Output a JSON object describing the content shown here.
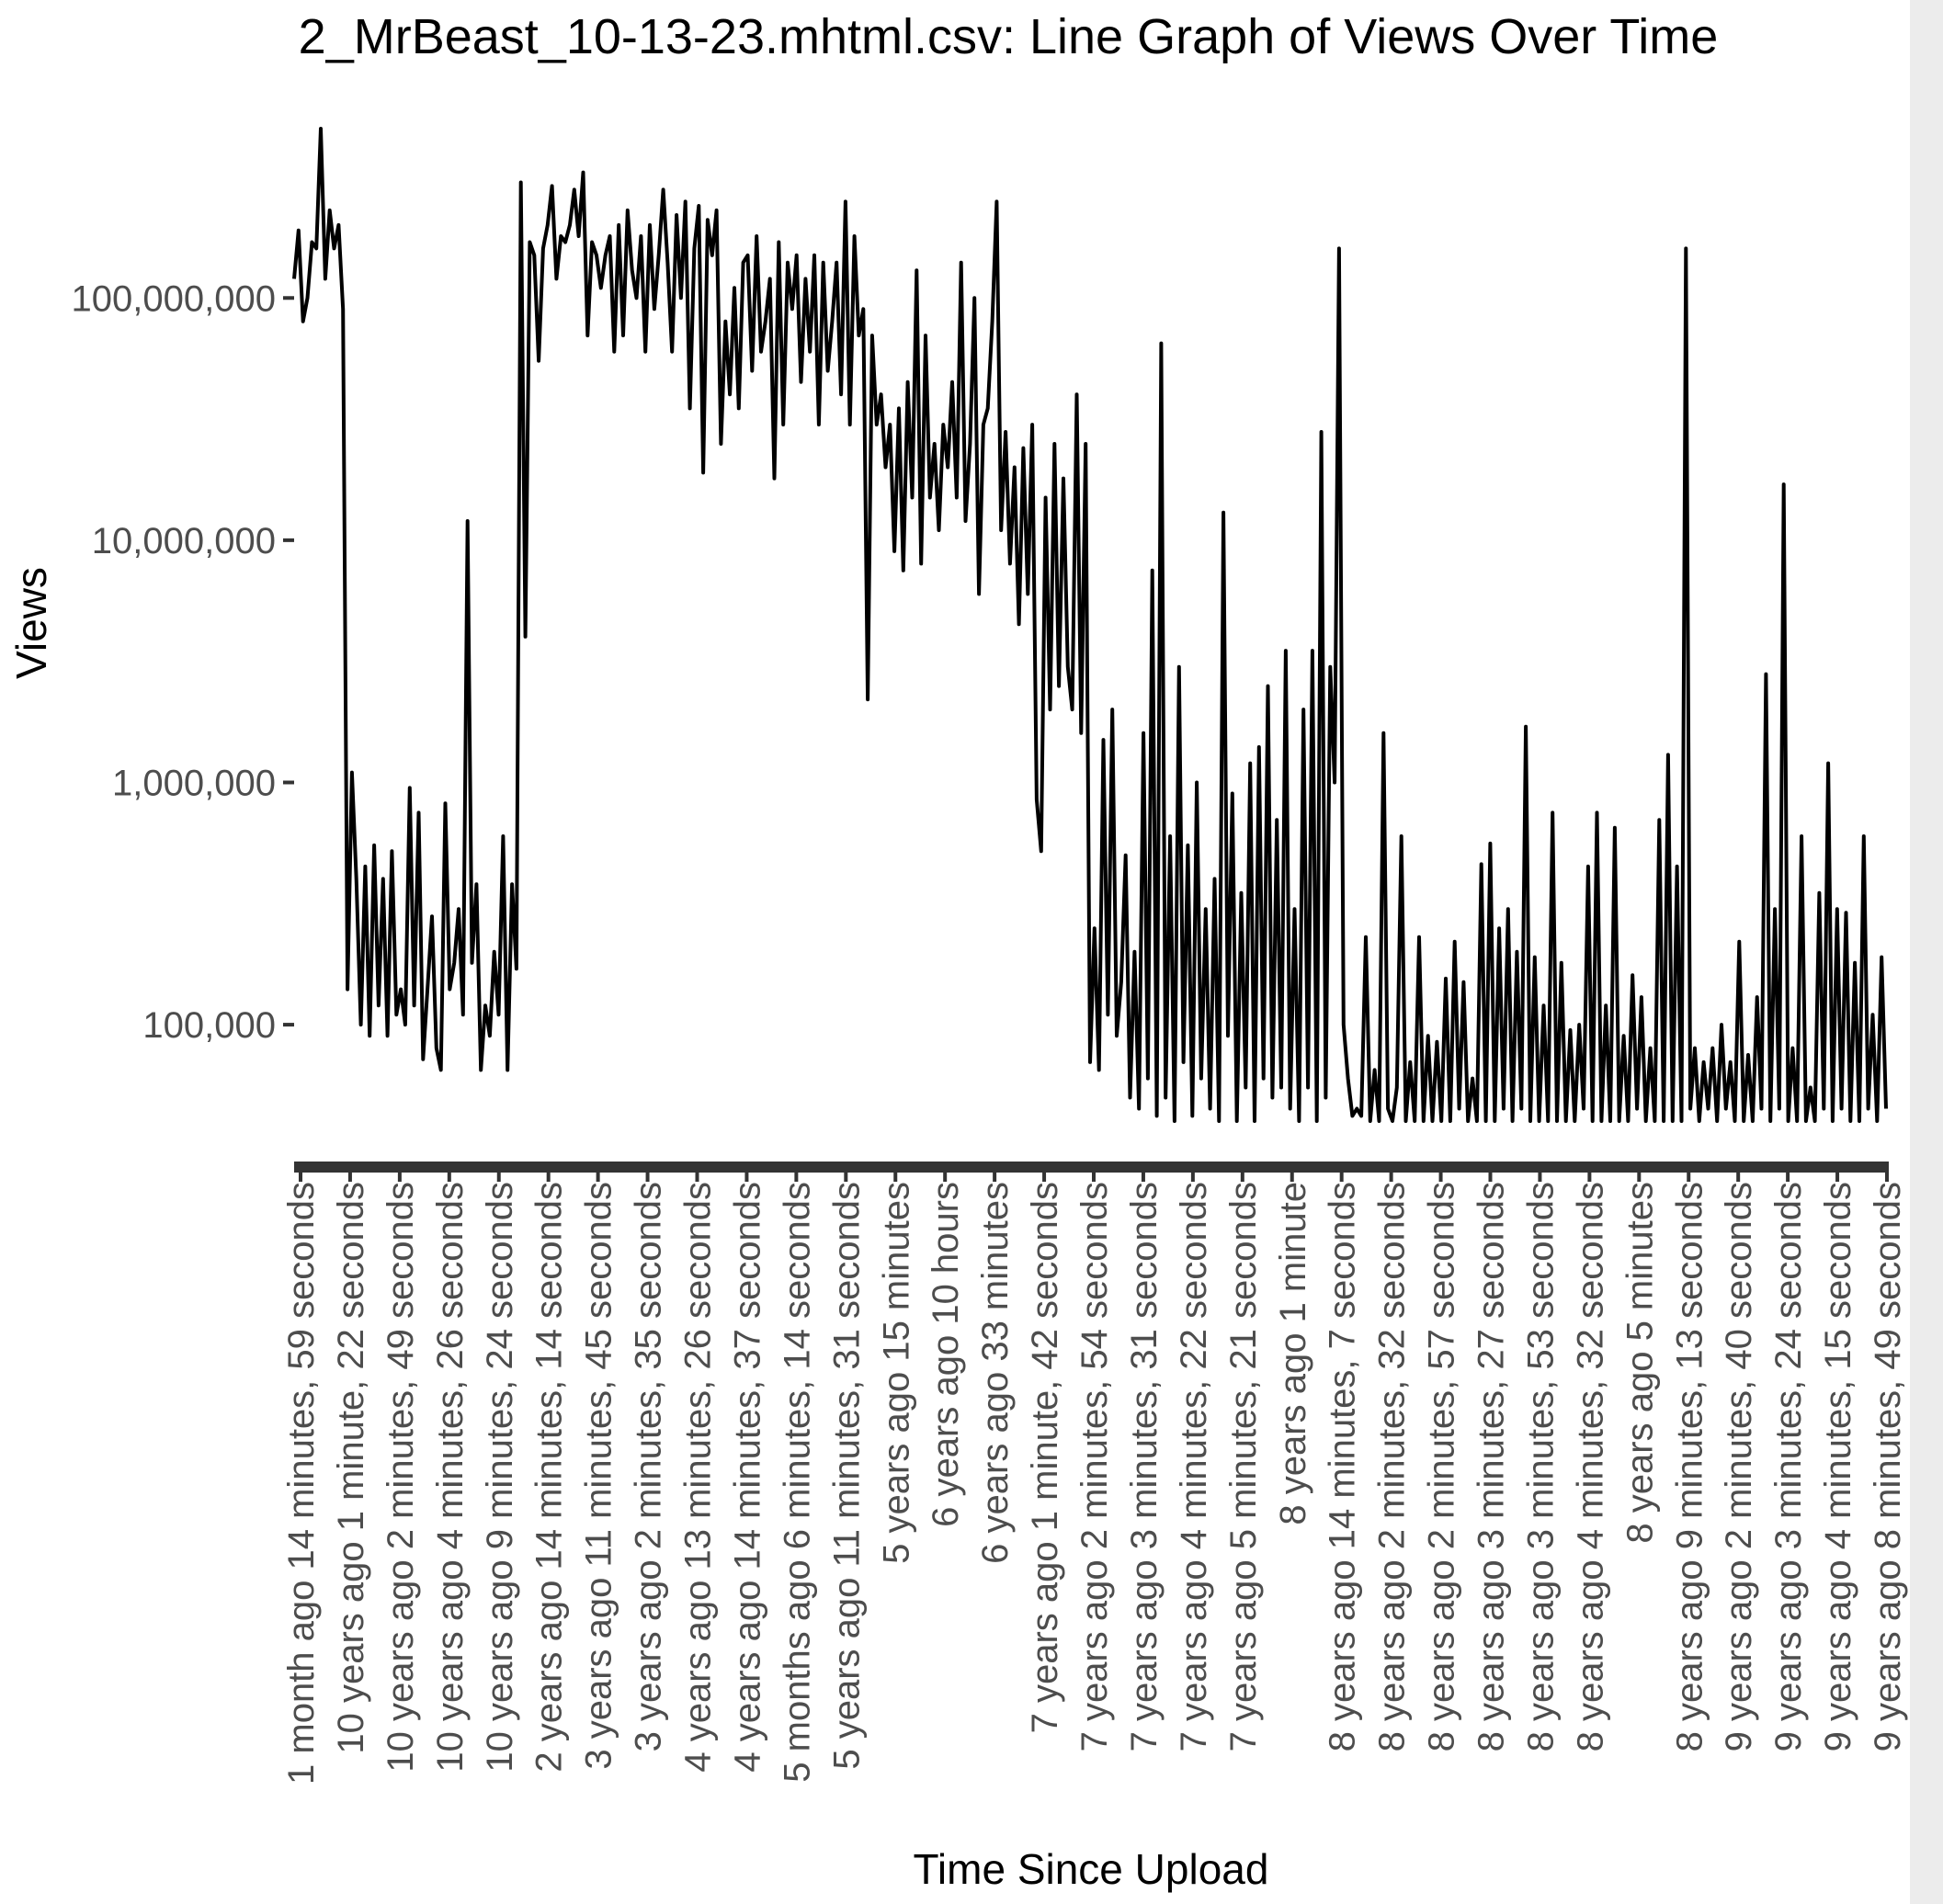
{
  "chart_data": {
    "type": "line",
    "title": "2_MrBeast_10-13-23.mhtml.csv: Line Graph of Views Over Time",
    "xlabel": "Time Since Upload",
    "ylabel": "Views",
    "y_scale": "log10",
    "ylim": [
      40000,
      500000000
    ],
    "y_ticks": [
      {
        "value": 100000,
        "label": "100,000"
      },
      {
        "value": 1000000,
        "label": "1,000,000"
      },
      {
        "value": 10000000,
        "label": "10,000,000"
      },
      {
        "value": 100000000,
        "label": "100,000,000"
      }
    ],
    "x_tick_labels": [
      "1 month ago 14 minutes, 59 seconds",
      "10 years ago 1 minute, 22 seconds",
      "10 years ago 2 minutes, 49 seconds",
      "10 years ago 4 minutes, 26 seconds",
      "10 years ago 9 minutes, 24 seconds",
      "2 years ago 14 minutes, 14 seconds",
      "3 years ago 11 minutes, 45 seconds",
      "3 years ago 2 minutes, 35 seconds",
      "4 years ago 13 minutes, 26 seconds",
      "4 years ago 14 minutes, 37 seconds",
      "5 months ago 6 minutes, 14 seconds",
      "5 years ago 11 minutes, 31 seconds",
      "5 years ago 15 minutes",
      "6 years ago 10 hours",
      "6 years ago 33 minutes",
      "7 years ago 1 minute, 42 seconds",
      "7 years ago 2 minutes, 54 seconds",
      "7 years ago 3 minutes, 31 seconds",
      "7 years ago 4 minutes, 22 seconds",
      "7 years ago 5 minutes, 21 seconds",
      "8 years ago 1 minute",
      "8 years ago 14 minutes, 7 seconds",
      "8 years ago 2 minutes, 32 seconds",
      "8 years ago 2 minutes, 57 seconds",
      "8 years ago 3 minutes, 27 seconds",
      "8 years ago 3 minutes, 53 seconds",
      "8 years ago 4 minutes, 32 seconds",
      "8 years ago 5 minutes",
      "8 years ago 9 minutes, 13 seconds",
      "9 years ago 2 minutes, 40 seconds",
      "9 years ago 3 minutes, 24 seconds",
      "9 years ago 4 minutes, 15 seconds",
      "9 years ago 8 minutes, 49 seconds"
    ],
    "series": [
      {
        "values": [
          120000000,
          190000000,
          80000000,
          100000000,
          170000000,
          160000000,
          500000000,
          120000000,
          230000000,
          160000000,
          200000000,
          90000000,
          140000,
          1100000,
          400000,
          100000,
          450000,
          90000,
          550000,
          120000,
          400000,
          90000,
          520000,
          110000,
          140000,
          100000,
          950000,
          120000,
          750000,
          72000,
          140000,
          280000,
          80000,
          65000,
          820000,
          140000,
          180000,
          300000,
          110000,
          12000000,
          180000,
          380000,
          65000,
          120000,
          90000,
          200000,
          110000,
          600000,
          65000,
          380000,
          170000,
          300000000,
          4000000,
          170000000,
          150000000,
          55000000,
          160000000,
          200000000,
          290000000,
          120000000,
          180000000,
          170000000,
          200000000,
          280000000,
          180000000,
          330000000,
          70000000,
          170000000,
          150000000,
          110000000,
          150000000,
          180000000,
          60000000,
          200000000,
          70000000,
          230000000,
          130000000,
          100000000,
          180000000,
          60000000,
          200000000,
          90000000,
          150000000,
          280000000,
          140000000,
          60000000,
          220000000,
          100000000,
          250000000,
          35000000,
          160000000,
          240000000,
          19000000,
          210000000,
          150000000,
          230000000,
          25000000,
          80000000,
          40000000,
          110000000,
          35000000,
          140000000,
          150000000,
          50000000,
          180000000,
          60000000,
          80000000,
          120000000,
          18000000,
          170000000,
          30000000,
          140000000,
          90000000,
          150000000,
          45000000,
          120000000,
          60000000,
          150000000,
          30000000,
          140000000,
          50000000,
          80000000,
          140000000,
          40000000,
          250000000,
          30000000,
          180000000,
          70000000,
          90000000,
          2200000,
          70000000,
          30000000,
          40000000,
          20000000,
          30000000,
          9000000,
          35000000,
          7500000,
          45000000,
          15000000,
          130000000,
          8000000,
          70000000,
          15000000,
          25000000,
          11000000,
          30000000,
          20000000,
          45000000,
          15000000,
          140000000,
          12000000,
          25000000,
          100000000,
          6000000,
          30000000,
          35000000,
          80000000,
          250000000,
          11000000,
          28000000,
          8000000,
          20000000,
          4500000,
          24000000,
          6000000,
          30000000,
          850000,
          520000,
          15000000,
          2000000,
          25000000,
          2500000,
          18000000,
          3000000,
          2000000,
          40000000,
          1600000,
          25000000,
          70000,
          250000,
          65000,
          1500000,
          110000,
          2000000,
          90000,
          150000,
          500000,
          50000,
          200000,
          45000,
          1600000,
          60000,
          7500000,
          42000,
          65000000,
          50000,
          600000,
          40000,
          3000000,
          70000,
          550000,
          42000,
          1000000,
          60000,
          300000,
          45000,
          400000,
          40000,
          13000000,
          90000,
          900000,
          40000,
          350000,
          55000,
          1200000,
          40000,
          1400000,
          60000,
          2500000,
          50000,
          700000,
          55000,
          3500000,
          45000,
          300000,
          40000,
          2000000,
          55000,
          3500000,
          40000,
          28000000,
          50000,
          3000000,
          1000000,
          160000000,
          100000,
          60000,
          42000,
          45000,
          42000,
          230000,
          40000,
          65000,
          40000,
          1600000,
          45000,
          40000,
          55000,
          600000,
          40000,
          70000,
          40000,
          230000,
          40000,
          90000,
          40000,
          85000,
          40000,
          155000,
          40000,
          220000,
          45000,
          150000,
          40000,
          60000,
          40000,
          460000,
          40000,
          560000,
          40000,
          250000,
          45000,
          300000,
          40000,
          200000,
          45000,
          1700000,
          40000,
          190000,
          40000,
          120000,
          40000,
          750000,
          40000,
          180000,
          40000,
          95000,
          40000,
          100000,
          45000,
          450000,
          40000,
          750000,
          40000,
          120000,
          40000,
          650000,
          40000,
          90000,
          40000,
          160000,
          45000,
          130000,
          40000,
          80000,
          40000,
          700000,
          40000,
          1300000,
          40000,
          450000,
          40000,
          160000000,
          45000,
          80000,
          40000,
          70000,
          45000,
          80000,
          40000,
          100000,
          45000,
          70000,
          40000,
          220000,
          40000,
          75000,
          40000,
          130000,
          45000,
          2800000,
          40000,
          300000,
          45000,
          17000000,
          40000,
          80000,
          40000,
          600000,
          40000,
          55000,
          40000,
          350000,
          45000,
          1200000,
          40000,
          300000,
          45000,
          290000,
          40000,
          180000,
          40000,
          600000,
          45000,
          110000,
          40000,
          190000,
          45000
        ]
      }
    ]
  }
}
